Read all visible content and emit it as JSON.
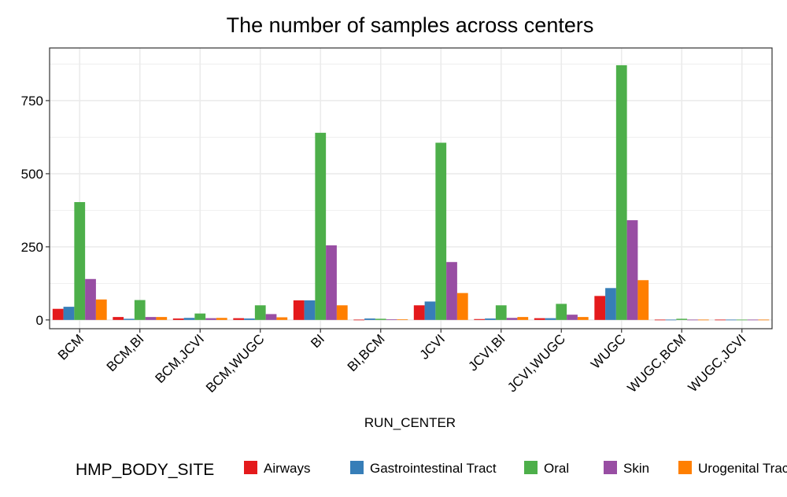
{
  "chart_data": {
    "type": "bar",
    "title": "The number of samples across centers",
    "xlabel": "RUN_CENTER",
    "ylabel": "",
    "ylim": [
      -30,
      930
    ],
    "yticks": [
      0,
      250,
      500,
      750
    ],
    "grid": true,
    "legend_position": "bottom",
    "legend_title": "HMP_BODY_SITE",
    "categories": [
      "BCM",
      "BCM,BI",
      "BCM,JCVI",
      "BCM,WUGC",
      "BI",
      "BI,BCM",
      "JCVI",
      "JCVI,BI",
      "JCVI,WUGC",
      "WUGC",
      "WUGC,BCM",
      "WUGC,JCVI"
    ],
    "series": [
      {
        "name": "Airways",
        "color": "#e41a1c",
        "values": [
          38,
          10,
          5,
          6,
          67,
          1,
          50,
          3,
          6,
          82,
          1,
          1
        ]
      },
      {
        "name": "Gastrointestinal Tract",
        "color": "#377eb8",
        "values": [
          45,
          4,
          7,
          5,
          67,
          5,
          63,
          5,
          6,
          109,
          1,
          1
        ]
      },
      {
        "name": "Oral",
        "color": "#4daf4a",
        "values": [
          403,
          68,
          22,
          50,
          640,
          4,
          606,
          50,
          55,
          871,
          4,
          1
        ]
      },
      {
        "name": "Skin",
        "color": "#984ea3",
        "values": [
          140,
          10,
          6,
          20,
          255,
          2,
          198,
          7,
          18,
          341,
          1,
          1
        ]
      },
      {
        "name": "Urogenital Tract",
        "color": "#ff7f00",
        "values": [
          70,
          10,
          7,
          9,
          50,
          2,
          92,
          10,
          10,
          136,
          1,
          1
        ]
      }
    ]
  }
}
